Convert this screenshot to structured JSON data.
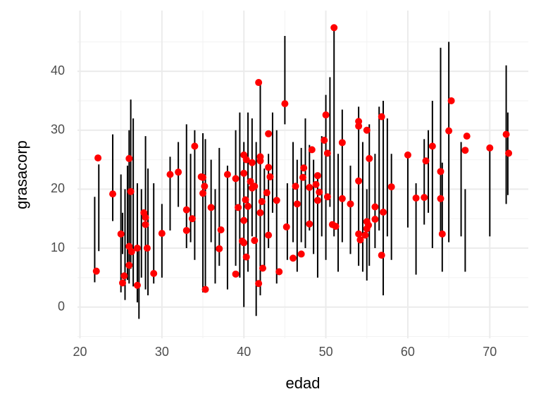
{
  "chart_data": {
    "type": "scatter",
    "x_label": "edad",
    "y_label": "grasacorp",
    "xlim": [
      19.7,
      74.7
    ],
    "ylim": [
      -5.3,
      50.3
    ],
    "xticks": [
      20,
      30,
      40,
      50,
      60,
      70
    ],
    "yticks": [
      0,
      10,
      20,
      30,
      40
    ],
    "grid": true,
    "ranges": {
      "color": "#000000",
      "x": [
        21.8,
        22.3,
        24,
        25,
        25.2,
        25.5,
        25.8,
        26,
        26.2,
        26.5,
        27,
        27.2,
        27.5,
        28,
        28.3,
        29,
        30,
        31,
        32,
        33,
        33.5,
        34,
        35,
        35.3,
        36,
        36.5,
        37,
        38,
        39,
        39.5,
        40,
        40.5,
        41,
        41.5,
        42,
        42.5,
        43,
        43.5,
        44,
        45,
        45.3,
        46,
        46.5,
        47,
        47.5,
        48,
        48.5,
        49,
        49.5,
        50,
        50.5,
        51,
        51.5,
        52,
        53,
        54,
        54.5,
        55,
        55.3,
        56,
        56.5,
        57,
        57.5,
        58,
        60,
        61,
        62,
        62.5,
        63,
        64,
        64.2,
        65,
        66.5,
        67,
        70,
        72,
        72.2
      ],
      "low": [
        4.2,
        9.5,
        14.6,
        2.5,
        9,
        1.2,
        4.6,
        4,
        6.5,
        3.5,
        0.8,
        -2,
        5,
        3,
        2,
        4,
        5,
        13,
        17,
        10,
        11,
        8,
        2.5,
        3.5,
        11,
        4,
        7,
        3,
        7,
        5,
        0,
        6,
        12,
        -1.5,
        2,
        7,
        10,
        16,
        4,
        31,
        8,
        11,
        6,
        11,
        10,
        13,
        9,
        5,
        12,
        8,
        17,
        12,
        6,
        11,
        9,
        7,
        6,
        4.5,
        7,
        10,
        13,
        2,
        12,
        8,
        13.5,
        5.5,
        14,
        16,
        10,
        12,
        6,
        11,
        12,
        6,
        12,
        17.5,
        19
      ],
      "high": [
        18.7,
        24.2,
        29.3,
        22.5,
        16,
        20,
        24,
        30,
        35.2,
        32,
        21,
        10,
        20,
        29,
        23.5,
        21,
        17.5,
        25.5,
        28,
        31,
        26,
        30,
        29.5,
        28.5,
        25,
        20,
        27,
        24,
        30,
        33,
        28,
        33,
        32,
        28,
        38,
        23.5,
        26,
        33,
        30,
        46,
        21,
        28,
        25,
        27,
        32,
        27.5,
        25,
        22,
        29,
        36,
        39,
        47,
        26,
        33.5,
        24,
        34,
        28,
        20,
        31,
        26,
        34,
        35,
        32,
        26,
        26,
        21,
        28.5,
        30,
        35,
        44,
        24.5,
        45,
        28,
        20,
        27,
        41,
        33
      ]
    },
    "points": {
      "color": "#ff0000",
      "x": [
        22,
        22.2,
        24,
        25,
        25.2,
        25.4,
        26,
        26,
        26,
        26.2,
        26.3,
        27,
        27,
        27.8,
        28,
        28,
        28.2,
        29,
        30,
        31,
        32,
        33,
        33,
        33.7,
        34,
        34.8,
        35,
        35,
        35.2,
        35.3,
        36,
        37,
        37.2,
        38,
        39,
        39,
        39.3,
        39.8,
        40,
        40,
        40,
        40,
        40.2,
        40.3,
        40.3,
        40.5,
        40.8,
        41,
        41,
        41.3,
        41.3,
        41.8,
        41.8,
        42,
        42,
        42,
        42.2,
        42.3,
        42.8,
        43,
        43,
        43.2,
        43,
        44,
        44.3,
        45,
        45.2,
        46,
        46.3,
        46.5,
        47,
        47.2,
        47.3,
        48,
        48,
        48.3,
        48.8,
        49,
        49,
        49.2,
        49.8,
        50,
        50.2,
        50.2,
        51,
        50.8,
        51.2,
        52,
        52,
        53,
        54,
        54,
        54,
        54,
        54.2,
        54.8,
        55,
        55,
        55,
        55.2,
        55.3,
        56,
        56,
        56.8,
        56.8,
        57,
        58,
        60,
        61,
        62,
        62.2,
        63,
        64,
        64,
        64.2,
        65,
        65.3,
        67,
        67.2,
        70,
        72,
        72.3
      ],
      "y": [
        6.1,
        25.3,
        19.2,
        12.4,
        4.1,
        5.3,
        10.3,
        25.2,
        7.1,
        19.6,
        9.4,
        3.7,
        10,
        16,
        15.2,
        14,
        10,
        5.7,
        12.5,
        22.5,
        22.9,
        16.5,
        13,
        15,
        27.3,
        22.1,
        19.3,
        22,
        20.5,
        3,
        16.9,
        9.9,
        13.1,
        22.5,
        5.6,
        21.8,
        16.9,
        11.2,
        25.8,
        22.7,
        14.7,
        10.9,
        18.2,
        25,
        8.5,
        17.1,
        21.3,
        20.2,
        24.5,
        20.5,
        11.3,
        38.1,
        4,
        16,
        24.8,
        25.5,
        17.9,
        6.6,
        19.4,
        29.4,
        23.7,
        22.1,
        12.2,
        18.1,
        6,
        34.5,
        13.6,
        8.3,
        20.5,
        17.5,
        9,
        22,
        23.6,
        14.1,
        20.3,
        26.7,
        20.8,
        22.3,
        18.1,
        19.5,
        28.3,
        32.6,
        26.1,
        18.7,
        47.4,
        14,
        13.7,
        18.4,
        27.9,
        17.5,
        31.5,
        30.7,
        21.4,
        12.4,
        11.4,
        12.2,
        30,
        13.3,
        14.5,
        13.9,
        25.2,
        14.9,
        17,
        32.3,
        8.8,
        16.1,
        20.4,
        25.8,
        18.5,
        18.6,
        24.8,
        27.3,
        18.4,
        23,
        12.4,
        29.9,
        35,
        26.6,
        29,
        27,
        29.3,
        26.1
      ]
    }
  }
}
